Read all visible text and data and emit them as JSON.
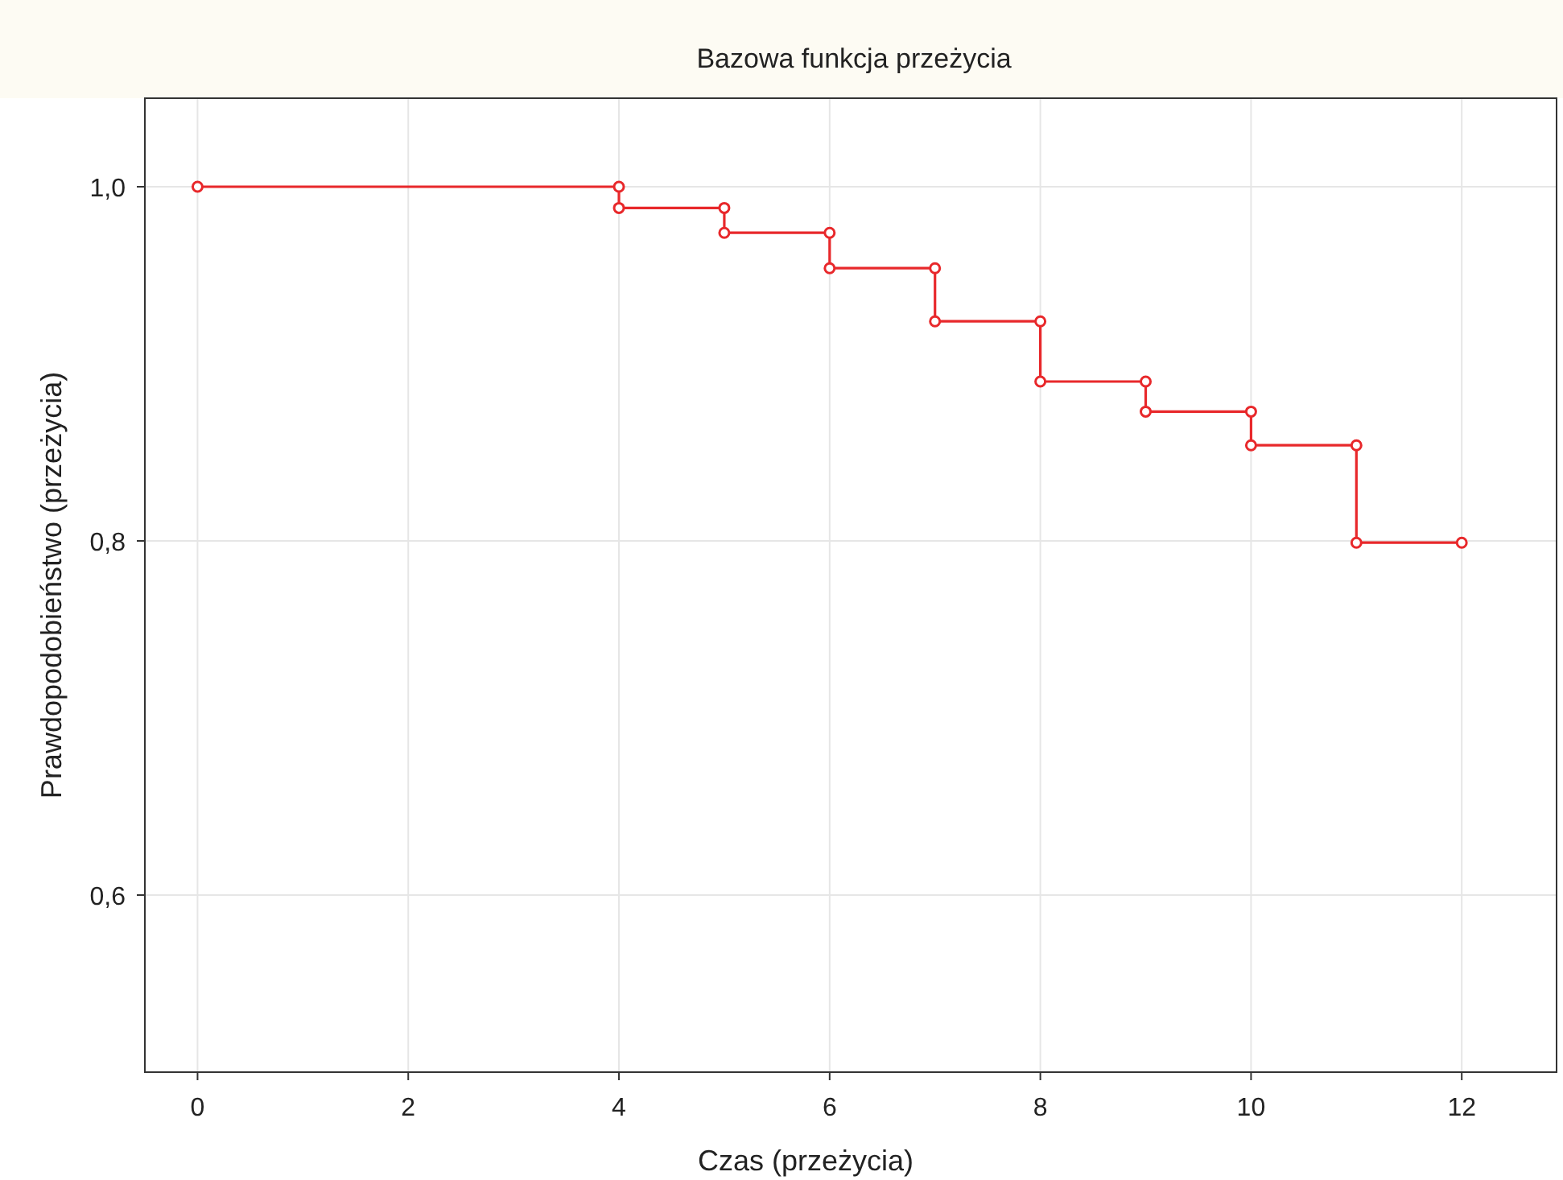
{
  "chart_data": {
    "type": "line",
    "title": "Bazowa funkcja przeżycia",
    "xlabel": "Czas (przeżycia)",
    "ylabel": "Prawdopodobieństwo (przeżycia)",
    "x": [
      0,
      4,
      4,
      5,
      5,
      6,
      6,
      7,
      7,
      8,
      8,
      9,
      9,
      10,
      10,
      11,
      11,
      12
    ],
    "series": [
      {
        "color": "#e8282b",
        "values": [
          1.0,
          1.0,
          0.988,
          0.988,
          0.974,
          0.974,
          0.954,
          0.954,
          0.924,
          0.924,
          0.89,
          0.89,
          0.873,
          0.873,
          0.854,
          0.854,
          0.799,
          0.799
        ]
      }
    ],
    "xlim": [
      -0.5,
      12.9
    ],
    "xticks": [
      0,
      2,
      4,
      6,
      8,
      10,
      12
    ],
    "ylim": [
      0.5,
      1.05
    ],
    "yticks": [
      {
        "value": 0.6,
        "label": "0,6"
      },
      {
        "value": 0.8,
        "label": "0,8"
      },
      {
        "value": 1.0,
        "label": "1,0"
      }
    ],
    "grid": true,
    "marker": "circle",
    "line_style": "solid"
  }
}
